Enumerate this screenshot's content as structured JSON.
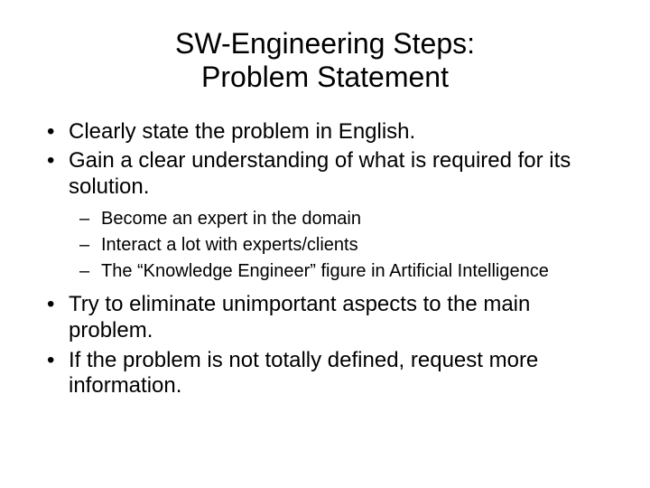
{
  "title_line1": "SW-Engineering Steps:",
  "title_line2": "Problem Statement",
  "bullets": {
    "b1": "Clearly state the problem in English.",
    "b2": "Gain a clear understanding of what is required for its solution.",
    "b3": "Try to eliminate unimportant aspects to the main problem.",
    "b4": "If the problem is not totally defined, request more information."
  },
  "sub_bullets": {
    "s1": "Become an expert in the domain",
    "s2": "Interact a lot with experts/clients",
    "s3": "The “Knowledge Engineer” figure in Artificial Intelligence"
  },
  "styling": {
    "background_color": "#ffffff",
    "text_color": "#000000",
    "title_fontsize": 32,
    "bullet_fontsize": 24,
    "sub_bullet_fontsize": 20,
    "font_family": "Arial"
  }
}
